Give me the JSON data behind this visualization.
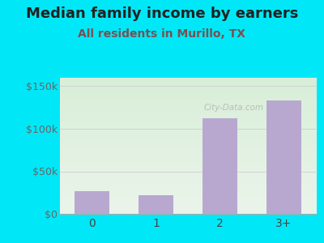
{
  "title": "Median family income by earners",
  "subtitle": "All residents in Murillo, TX",
  "categories": [
    "0",
    "1",
    "2",
    "3+"
  ],
  "values": [
    27000,
    22000,
    112000,
    133000
  ],
  "bar_color": "#b8a8d0",
  "title_fontsize": 13,
  "subtitle_fontsize": 10,
  "subtitle_color": "#7a5050",
  "title_color": "#222222",
  "background_outer": "#00e8f8",
  "ylim": [
    0,
    160000
  ],
  "yticks": [
    0,
    50000,
    100000,
    150000
  ],
  "ytick_labels": [
    "$0",
    "$50k",
    "$100k",
    "$150k"
  ],
  "watermark": "City-Data.com",
  "grad_top_left": "#d8eed8",
  "grad_bottom_right": "#f0f4f8"
}
